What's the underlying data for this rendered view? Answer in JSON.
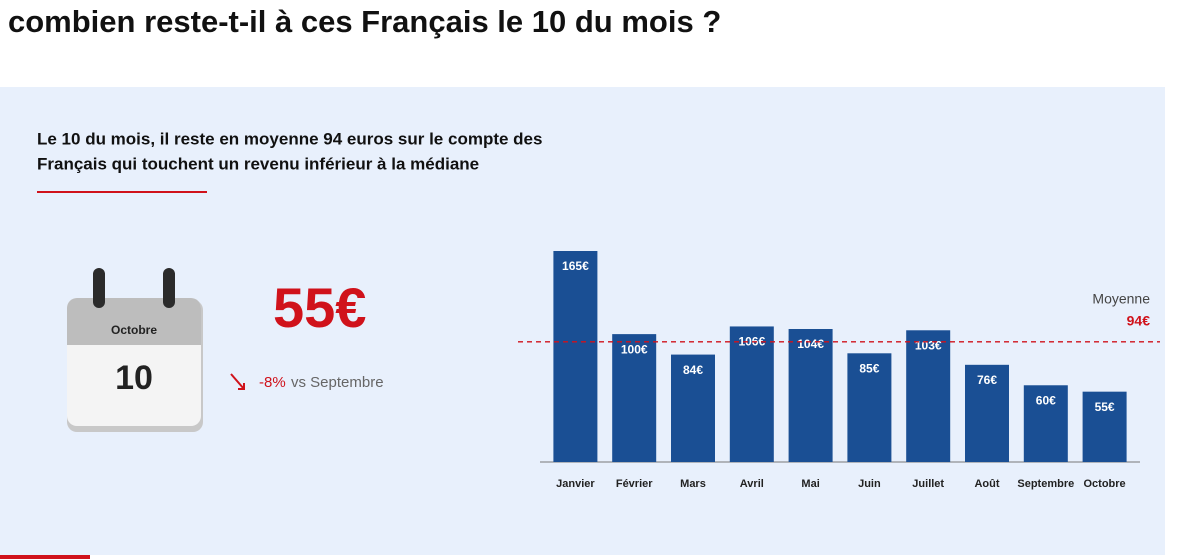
{
  "chart_data": {
    "type": "bar",
    "title": "combien reste-t-il à ces Français le 10 du mois ?",
    "subtitle_lines": [
      "Le 10 du mois, il reste en moyenne 94 euros sur le compte des",
      "Français qui touchent un revenu inférieur à la médiane"
    ],
    "calendar": {
      "month": "Octobre",
      "day": "10"
    },
    "highlight": {
      "amount": "55€",
      "change": "-8%",
      "comparison": "vs Septembre"
    },
    "categories": [
      "Janvier",
      "Février",
      "Mars",
      "Avril",
      "Mai",
      "Juin",
      "Juillet",
      "Août",
      "Septembre",
      "Octobre"
    ],
    "values": [
      165,
      100,
      84,
      106,
      104,
      85,
      103,
      76,
      60,
      55
    ],
    "value_labels": [
      "165€",
      "100€",
      "84€",
      "106€",
      "104€",
      "85€",
      "103€",
      "76€",
      "60€",
      "55€"
    ],
    "color": "#1a4f94",
    "reference_line": {
      "name": "Moyenne",
      "value": 94,
      "label": "94€",
      "color": "#d0121b"
    }
  }
}
